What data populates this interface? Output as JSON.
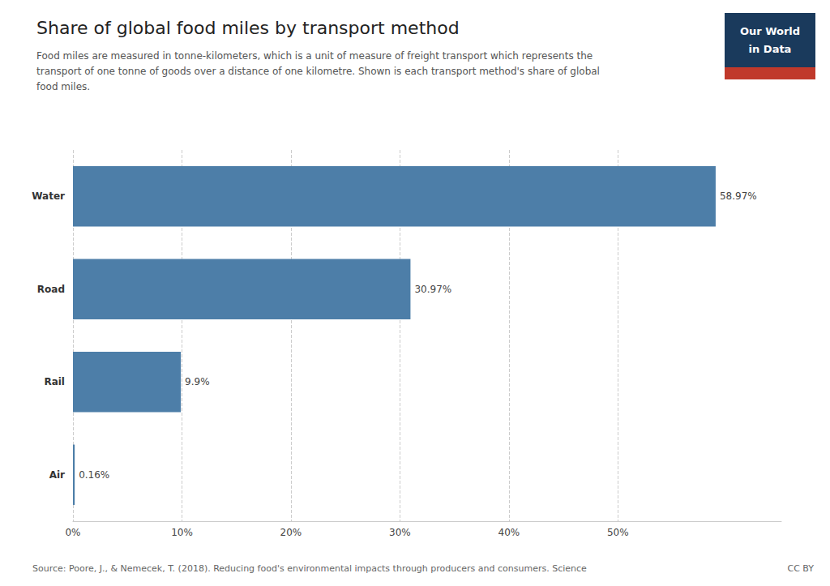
{
  "chart_data": {
    "type": "bar",
    "orientation": "horizontal",
    "title": "Share of global food miles by transport method",
    "subtitle": "Food miles are measured in tonne-kilometers, which is a unit of measure of freight transport which represents the\ntransport of one tonne of goods over a distance of one kilometre. Shown is each transport method's share of global\nfood miles.",
    "categories": [
      "Air",
      "Rail",
      "Road",
      "Water"
    ],
    "values": [
      0.16,
      9.9,
      30.97,
      58.97
    ],
    "value_labels": [
      "0.16%",
      "9.9%",
      "30.97%",
      "58.97%"
    ],
    "data_labels": true,
    "color": "#4d7ea8",
    "xlim": [
      0,
      65
    ],
    "xticks": [
      {
        "value": 0,
        "label": "0%"
      },
      {
        "value": 10,
        "label": "10%"
      },
      {
        "value": 20,
        "label": "20%"
      },
      {
        "value": 30,
        "label": "30%"
      },
      {
        "value": 40,
        "label": "40%"
      },
      {
        "value": 50,
        "label": "50%"
      }
    ],
    "grid": true,
    "annotations": [
      "Source: Poore, J., & Nemecek, T. (2018). Reducing food's environmental impacts through producers and consumers. Science",
      "CC BY",
      "Our World",
      "in Data"
    ]
  }
}
